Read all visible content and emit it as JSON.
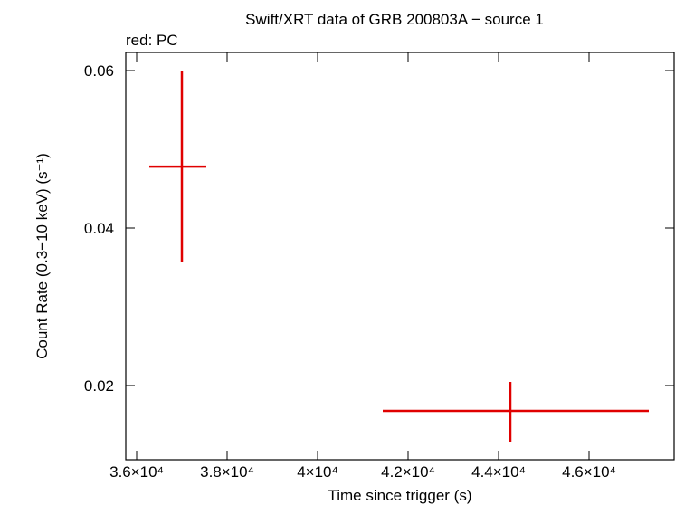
{
  "chart_data": {
    "type": "errorbar",
    "title": "Swift/XRT data of GRB 200803A − source 1",
    "subtitle": "red: PC",
    "xlabel": "Time since trigger (s)",
    "ylabel": "Count Rate (0.3−10 keV) (s⁻¹)",
    "xlim": [
      35760,
      47880
    ],
    "ylim": [
      0.01057,
      0.0623
    ],
    "xticks": [
      {
        "value": 36000,
        "label": "3.6×10⁴"
      },
      {
        "value": 38000,
        "label": "3.8×10⁴"
      },
      {
        "value": 40000,
        "label": "4×10⁴"
      },
      {
        "value": 42000,
        "label": "4.2×10⁴"
      },
      {
        "value": 44000,
        "label": "4.4×10⁴"
      },
      {
        "value": 46000,
        "label": "4.6×10⁴"
      }
    ],
    "yticks": [
      0.02,
      0.04,
      0.06
    ],
    "series": [
      {
        "color": "#e00000",
        "x": [
          37000,
          44260
        ],
        "values": [
          0.0478,
          0.01678
        ],
        "xerr_minus": [
          720,
          2820
        ],
        "xerr_plus": [
          540,
          3060
        ],
        "yerr_minus": [
          0.01205,
          0.00391
        ],
        "yerr_plus": [
          0.0122,
          0.00368
        ]
      }
    ]
  }
}
